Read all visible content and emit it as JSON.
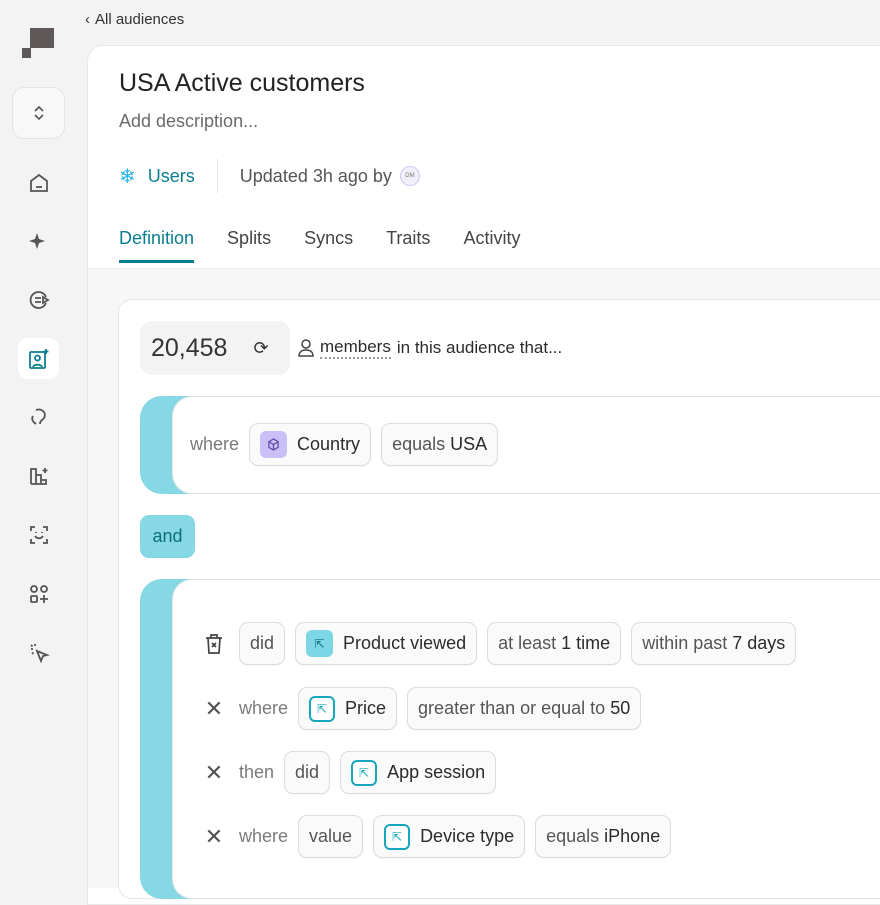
{
  "nav": {
    "back_label": "All audiences",
    "items": [
      "home",
      "sparkle",
      "play-list",
      "audiences",
      "journeys",
      "charts",
      "face-scan",
      "apps-add",
      "cursor-click"
    ],
    "active": "audiences"
  },
  "header": {
    "title": "USA Active customers",
    "description_placeholder": "Add description...",
    "source": "Users",
    "updated": "Updated 3h ago by",
    "avatar_initials": "DM"
  },
  "tabs": [
    {
      "label": "Definition",
      "active": true
    },
    {
      "label": "Splits"
    },
    {
      "label": "Syncs"
    },
    {
      "label": "Traits"
    },
    {
      "label": "Activity"
    }
  ],
  "summary": {
    "count": "20,458",
    "members_label": "members",
    "suffix": "in this audience that..."
  },
  "condition1": {
    "keyword": "where",
    "property": "Country",
    "operator": "equals",
    "value": "USA"
  },
  "and_label": "and",
  "condition2": {
    "event_row": {
      "did": "did",
      "event": "Product viewed",
      "freq_prefix": "at least",
      "freq_value": "1 time",
      "window_prefix": "within past",
      "window_value": "7 days"
    },
    "where_row": {
      "keyword": "where",
      "property": "Price",
      "operator": "greater than or equal to",
      "value": "50"
    },
    "then_row": {
      "keyword": "then",
      "did": "did",
      "event": "App session"
    },
    "where_row2": {
      "keyword": "where",
      "value_label": "value",
      "property": "Device type",
      "operator": "equals",
      "value": "iPhone"
    }
  },
  "colors": {
    "accent": "#0b7e8e",
    "bar": "#86d8e5",
    "purple": "#cbbff7"
  }
}
